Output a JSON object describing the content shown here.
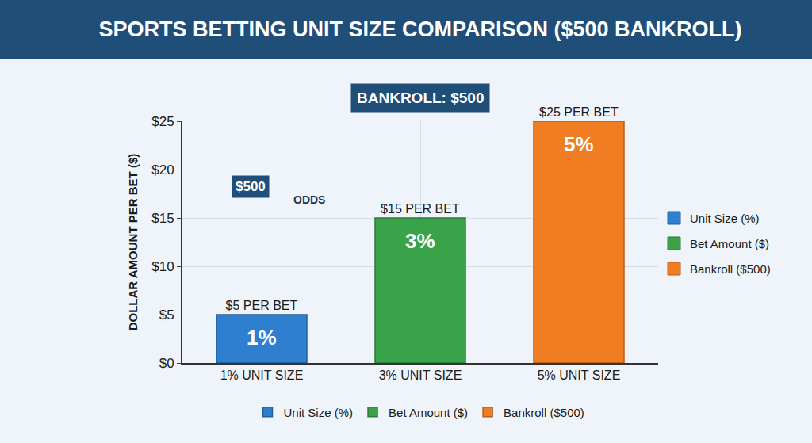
{
  "chart_data": {
    "type": "bar",
    "title": "SPORTS BETTING UNIT SIZE COMPARISON ($500 BANKROLL)",
    "subtitle": "BANKROLL: $500",
    "y_label": "DOLLAR AMOUNT PER BET ($)",
    "categories": [
      "1% UNIT SIZE",
      "3% UNIT SIZE",
      "5% UNIT SIZE"
    ],
    "series": [
      {
        "name": "Unit Size (%)",
        "color": "#2f7fd0",
        "values": [
          5,
          null,
          null
        ],
        "value_labels": [
          "$5 PER BET",
          null,
          null
        ]
      },
      {
        "name": "Bet Amount ($)",
        "color": "#3aa34a",
        "values": [
          null,
          15,
          null
        ],
        "value_labels": [
          null,
          "$15 PER BET",
          null
        ]
      },
      {
        "name": "Bankroll ($500)",
        "color": "#f07d22",
        "values": [
          null,
          null,
          25
        ],
        "value_labels": [
          null,
          null,
          "$25 PER BET"
        ]
      }
    ],
    "annotations": [
      {
        "text": "1%",
        "category": "1% UNIT SIZE"
      },
      {
        "text": "3%",
        "category": "3% UNIT SIZE"
      },
      {
        "text": "5%",
        "category": "5% UNIT SIZE"
      },
      {
        "text": "$500"
      },
      {
        "text": "ODDS"
      }
    ],
    "ylim": [
      0,
      25
    ],
    "yticks": [
      {
        "value": 0,
        "label": "$0"
      },
      {
        "value": 5,
        "label": "$5"
      },
      {
        "value": 10,
        "label": "$10"
      },
      {
        "value": 15,
        "label": "$15"
      },
      {
        "value": 20,
        "label": "$20"
      },
      {
        "value": 25,
        "label": "$25"
      }
    ],
    "grid": true,
    "data_labels": true,
    "legend": "bottom"
  }
}
